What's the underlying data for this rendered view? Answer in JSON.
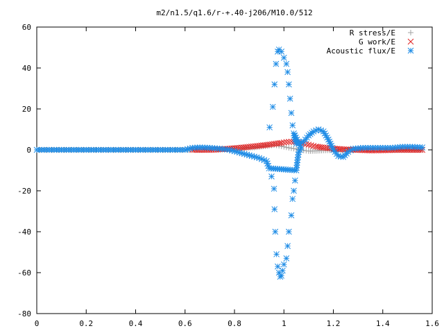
{
  "chart_data": {
    "type": "scatter",
    "title": "m2/n1.5/q1.6/r-+.40-j206/M10.0/512",
    "xlabel": "",
    "ylabel": "",
    "xlim": [
      0,
      1.6
    ],
    "ylim": [
      -80,
      60
    ],
    "xticks": [
      "0",
      "0.2",
      "0.4",
      "0.6",
      "0.8",
      "1",
      "1.2",
      "1.4",
      "1.6"
    ],
    "yticks": [
      "60",
      "40",
      "20",
      "0",
      "-20",
      "-40",
      "-60",
      "-80"
    ],
    "grid": false,
    "legend_position": "top-right",
    "series": [
      {
        "name": "R stress/E",
        "marker": "plus",
        "color": "#a0a0a0",
        "points": [
          [
            0.0,
            0
          ],
          [
            0.1,
            0
          ],
          [
            0.2,
            0
          ],
          [
            0.3,
            0
          ],
          [
            0.4,
            0
          ],
          [
            0.5,
            0
          ],
          [
            0.6,
            0
          ],
          [
            0.65,
            0
          ],
          [
            0.7,
            0.1
          ],
          [
            0.75,
            0.3
          ],
          [
            0.8,
            0.6
          ],
          [
            0.84,
            0.9
          ],
          [
            0.88,
            1.2
          ],
          [
            0.91,
            1.6
          ],
          [
            0.94,
            2.0
          ],
          [
            0.96,
            2.4
          ],
          [
            0.98,
            2.0
          ],
          [
            1.0,
            1.5
          ],
          [
            1.02,
            1.0
          ],
          [
            1.04,
            0.6
          ],
          [
            1.06,
            0.2
          ],
          [
            1.08,
            -0.3
          ],
          [
            1.1,
            -0.6
          ],
          [
            1.13,
            -0.5
          ],
          [
            1.16,
            -0.3
          ],
          [
            1.2,
            -0.1
          ],
          [
            1.25,
            0
          ],
          [
            1.3,
            0
          ],
          [
            1.4,
            0
          ],
          [
            1.5,
            0
          ],
          [
            1.56,
            0
          ]
        ]
      },
      {
        "name": "G work/E",
        "marker": "cross",
        "color": "#e02020",
        "points": [
          [
            0.63,
            0
          ],
          [
            0.66,
            0
          ],
          [
            0.7,
            0
          ],
          [
            0.74,
            0.2
          ],
          [
            0.78,
            0.6
          ],
          [
            0.82,
            1.0
          ],
          [
            0.86,
            1.5
          ],
          [
            0.9,
            2.0
          ],
          [
            0.93,
            2.4
          ],
          [
            0.96,
            2.9
          ],
          [
            0.99,
            3.4
          ],
          [
            1.01,
            3.8
          ],
          [
            1.03,
            4.0
          ],
          [
            1.05,
            3.8
          ],
          [
            1.07,
            3.4
          ],
          [
            1.09,
            2.8
          ],
          [
            1.11,
            2.2
          ],
          [
            1.13,
            1.6
          ],
          [
            1.16,
            1.1
          ],
          [
            1.2,
            0.6
          ],
          [
            1.25,
            0.2
          ],
          [
            1.3,
            0
          ],
          [
            1.35,
            -0.3
          ],
          [
            1.4,
            -0.2
          ],
          [
            1.45,
            0
          ],
          [
            1.5,
            0
          ],
          [
            1.56,
            0
          ]
        ]
      },
      {
        "name": "Acoustic flux/E",
        "marker": "asterisk",
        "color": "#1e8ce6",
        "points": [
          [
            0.0,
            0
          ],
          [
            0.04,
            0
          ],
          [
            0.08,
            0
          ],
          [
            0.12,
            0
          ],
          [
            0.16,
            0
          ],
          [
            0.2,
            0
          ],
          [
            0.24,
            0
          ],
          [
            0.28,
            0
          ],
          [
            0.32,
            0
          ],
          [
            0.36,
            0
          ],
          [
            0.4,
            0
          ],
          [
            0.44,
            0
          ],
          [
            0.48,
            0
          ],
          [
            0.52,
            0
          ],
          [
            0.56,
            0
          ],
          [
            0.6,
            0
          ],
          [
            0.63,
            1.0
          ],
          [
            0.66,
            1.2
          ],
          [
            0.7,
            1.0
          ],
          [
            0.74,
            0.6
          ],
          [
            0.78,
            0
          ],
          [
            0.81,
            -1.0
          ],
          [
            0.84,
            -2.0
          ],
          [
            0.87,
            -3.0
          ],
          [
            0.9,
            -4.0
          ],
          [
            0.93,
            -5.5
          ],
          [
            0.94,
            -9
          ],
          [
            0.95,
            -13
          ],
          [
            0.96,
            -19
          ],
          [
            0.962,
            -29
          ],
          [
            0.965,
            -40
          ],
          [
            0.97,
            -51
          ],
          [
            0.975,
            -57
          ],
          [
            0.98,
            -60
          ],
          [
            0.985,
            -62
          ],
          [
            0.99,
            -61.5
          ],
          [
            0.995,
            -59
          ],
          [
            1.0,
            -56
          ],
          [
            1.01,
            -53
          ],
          [
            1.015,
            -47
          ],
          [
            1.02,
            -40
          ],
          [
            1.03,
            -32
          ],
          [
            1.035,
            -24
          ],
          [
            1.04,
            -20
          ],
          [
            1.045,
            -15
          ],
          [
            1.05,
            -10
          ],
          [
            1.055,
            -5
          ],
          [
            1.06,
            -1
          ],
          [
            1.07,
            1
          ],
          [
            0.942,
            11
          ],
          [
            0.955,
            21
          ],
          [
            0.962,
            32
          ],
          [
            0.968,
            42
          ],
          [
            0.975,
            48
          ],
          [
            0.98,
            49
          ],
          [
            0.99,
            48
          ],
          [
            1.0,
            45
          ],
          [
            1.01,
            42
          ],
          [
            1.015,
            38
          ],
          [
            1.02,
            32
          ],
          [
            1.025,
            25
          ],
          [
            1.03,
            18
          ],
          [
            1.035,
            12
          ],
          [
            1.04,
            8
          ],
          [
            1.045,
            5
          ],
          [
            1.05,
            3
          ],
          [
            1.08,
            4
          ],
          [
            1.1,
            7
          ],
          [
            1.12,
            9
          ],
          [
            1.14,
            10
          ],
          [
            1.16,
            9
          ],
          [
            1.18,
            5
          ],
          [
            1.2,
            0
          ],
          [
            1.22,
            -3
          ],
          [
            1.24,
            -3.5
          ],
          [
            1.26,
            -1
          ],
          [
            1.28,
            0.5
          ],
          [
            1.32,
            1
          ],
          [
            1.36,
            1
          ],
          [
            1.4,
            1
          ],
          [
            1.44,
            1
          ],
          [
            1.48,
            1.5
          ],
          [
            1.52,
            1.5
          ],
          [
            1.56,
            1.2
          ]
        ]
      }
    ]
  }
}
